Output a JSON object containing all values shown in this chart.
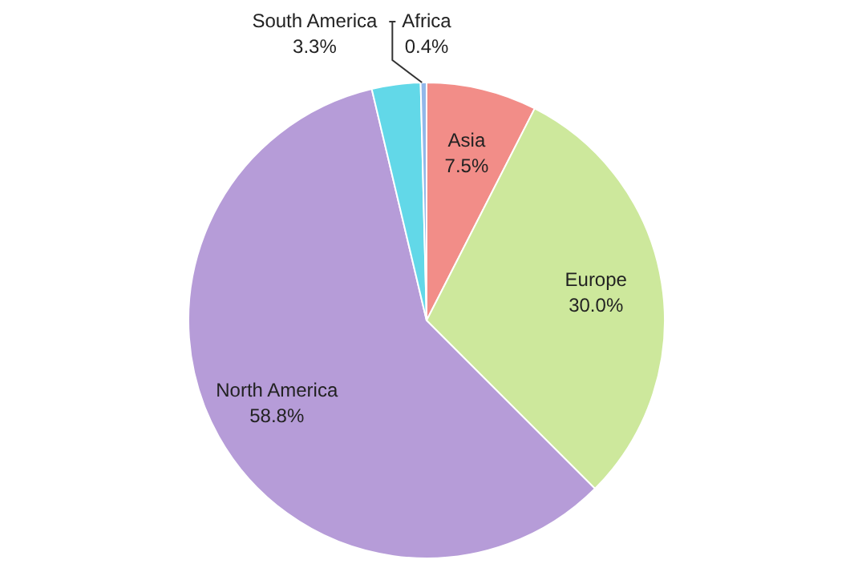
{
  "chart_data": {
    "type": "pie",
    "categories": [
      "Asia",
      "Europe",
      "North America",
      "South America",
      "Africa"
    ],
    "values": [
      7.5,
      30.0,
      58.8,
      3.3,
      0.4
    ],
    "value_labels": [
      "7.5%",
      "30.0%",
      "58.8%",
      "3.3%",
      "0.4%"
    ],
    "colors": [
      "#f28d88",
      "#cde89c",
      "#b69cd8",
      "#62d8e8",
      "#92b8ea"
    ],
    "legend": false
  }
}
